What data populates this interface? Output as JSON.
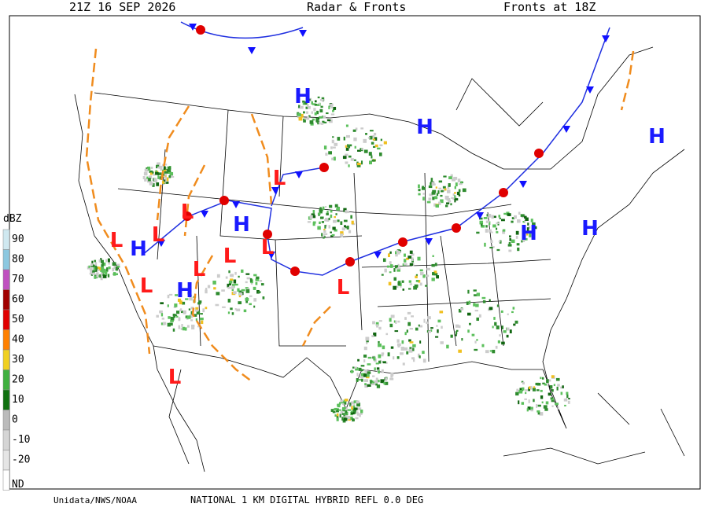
{
  "header": {
    "left": "21Z  16 SEP  2026",
    "center": "Radar & Fronts",
    "right": "Fronts at 18Z"
  },
  "legend": {
    "unit": "dBZ",
    "labels": [
      "90",
      "80",
      "70",
      "60",
      "50",
      "40",
      "30",
      "20",
      "10",
      "0",
      "-10",
      "-20",
      "ND"
    ]
  },
  "footer": {
    "left": "Unidata/NWS/NOAA",
    "center": "NATIONAL 1 KM DIGITAL HYBRID REFL 0.0 DEG"
  },
  "pressure_centers": [
    "H",
    "H",
    "H",
    "H",
    "H",
    "H",
    "H",
    "H",
    "L",
    "L",
    "L",
    "L",
    "L",
    "L",
    "L",
    "L",
    "L",
    "L"
  ]
}
